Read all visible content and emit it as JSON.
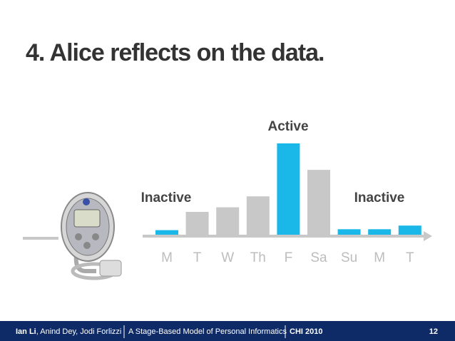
{
  "slide": {
    "title": "4. Alice reflects on the data.",
    "footer": {
      "lead_author": "Ian Li",
      "other_authors": ", Anind Dey, Jodi Forlizzi",
      "paper": "A Stage-Based Model of Personal Informatics",
      "venue": "CHI 2010",
      "page": "12"
    }
  },
  "chart_data": {
    "type": "bar",
    "categories": [
      "M",
      "T",
      "W",
      "Th",
      "F",
      "Sa",
      "Su",
      "M",
      "T"
    ],
    "values": [
      0.5,
      2.5,
      3,
      4.2,
      10,
      7.1,
      0.6,
      0.6,
      1
    ],
    "colors": [
      "#1ab8e8",
      "#c8c8c8",
      "#c8c8c8",
      "#c8c8c8",
      "#1ab8e8",
      "#c8c8c8",
      "#1ab8e8",
      "#1ab8e8",
      "#1ab8e8"
    ],
    "ylim": [
      0,
      10
    ],
    "annotations": [
      "Active",
      "Inactive",
      "Inactive"
    ]
  }
}
